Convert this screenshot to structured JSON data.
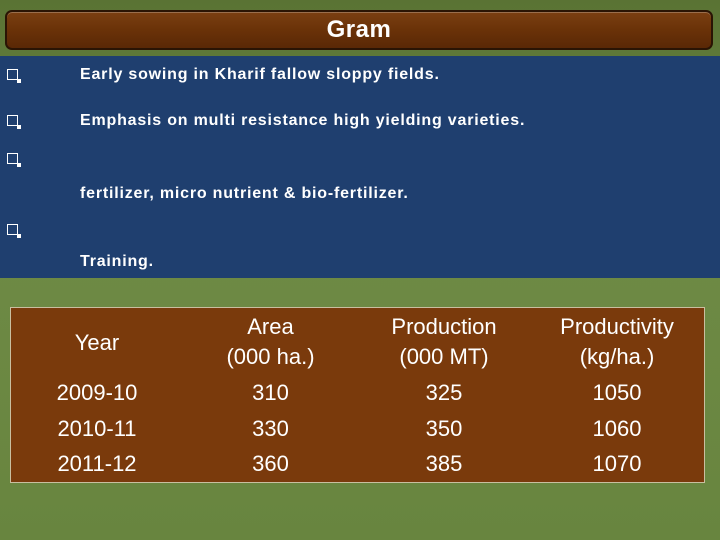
{
  "slide": {
    "title": "Gram",
    "bullets": [
      {
        "text": "Early sowing in Kharif fallow sloppy fields."
      },
      {
        "text": "Emphasis on multi resistance high yielding varieties."
      },
      {
        "text": "fertilizer, micro nutrient & bio-fertilizer."
      },
      {
        "text": "Training."
      }
    ]
  },
  "table": {
    "headers": [
      {
        "line1": "Year",
        "line2": ""
      },
      {
        "line1": "Area",
        "line2": "(000 ha.)"
      },
      {
        "line1": "Production",
        "line2": "(000 MT)"
      },
      {
        "line1": "Productivity",
        "line2": "(kg/ha.)"
      }
    ],
    "rows": [
      [
        "2009-10",
        "310",
        "325",
        "1050"
      ],
      [
        "2010-11",
        "330",
        "350",
        "1060"
      ],
      [
        "2011-12",
        "360",
        "385",
        "1070"
      ]
    ]
  },
  "colors": {
    "title_bar": "#6a3208",
    "bullet_panel": "#1f3f6f",
    "table_bg": "#7a3a0c",
    "slide_bg": "#5f7a3a"
  }
}
